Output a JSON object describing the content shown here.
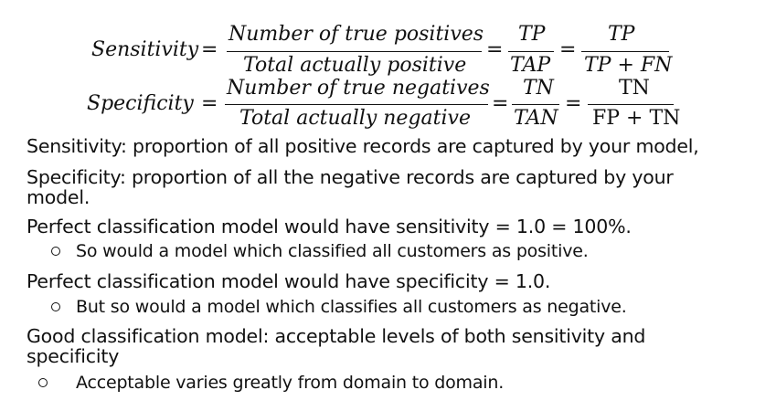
{
  "formulas": {
    "sensitivity": {
      "lhs": "Sensitivity",
      "op": "=",
      "frac1_num": "Number of true positives",
      "frac1_den": "Total actually positive",
      "eq2": "=",
      "frac2_num": "TP",
      "frac2_den": "TAP",
      "eq3": "=",
      "frac3_num": "TP",
      "frac3_den": "TP + FN"
    },
    "specificity": {
      "lhs": "Specificity",
      "op": "=",
      "frac1_num": "Number of true negatives",
      "frac1_den": "Total actually negative",
      "eq2": "=",
      "frac2_num": "TN",
      "frac2_den": "TAN",
      "eq3": "=",
      "frac3_num": "TN",
      "frac3_den": "FP + TN"
    }
  },
  "lines": {
    "l1": "Sensitivity: proportion of all positive records are captured by your model,",
    "l2a": "Specificity: proportion of all the negative records are captured by your",
    "l2b": "model.",
    "l3": "Perfect classification model would have sensitivity = 1.0 = 100%.",
    "l3_sub": "So would a model which classified all customers as positive.",
    "l4": "Perfect classification model would have specificity = 1.0.",
    "l4_sub": "But so would a model which classifies all customers as negative.",
    "l5a": "Good classification model: acceptable levels of both sensitivity and",
    "l5b": "specificity",
    "l5_sub": "Acceptable varies greatly from domain to domain."
  }
}
